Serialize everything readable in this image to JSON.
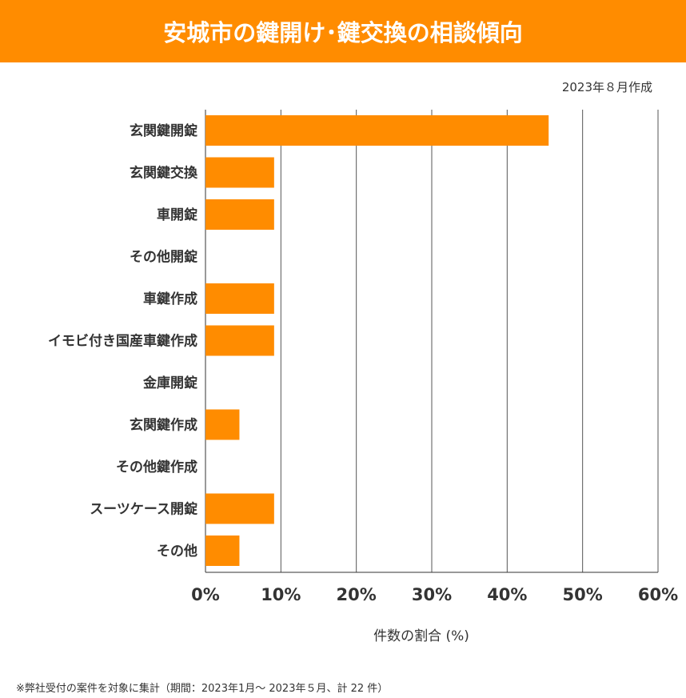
{
  "header": {
    "title": "安城市の鍵開け･鍵交換の相談傾向"
  },
  "created": "2023年８月作成",
  "footnote": "※弊社受付の案件を対象に集計（期間：2023年1月～ 2023年５月、計 22 件）",
  "colors": {
    "accent": "#FF8C00",
    "bar": "#FF8C00",
    "grid": "#555555"
  },
  "chart_data": {
    "type": "bar",
    "orientation": "horizontal",
    "categories": [
      "玄関鍵開錠",
      "玄関鍵交換",
      "車開錠",
      "その他開錠",
      "車鍵作成",
      "イモビ付き国産車鍵作成",
      "金庫開錠",
      "玄関鍵作成",
      "その他鍵作成",
      "スーツケース開錠",
      "その他"
    ],
    "values": [
      45.5,
      9.1,
      9.1,
      0,
      9.1,
      9.1,
      0,
      4.5,
      0,
      9.1,
      4.5
    ],
    "xlabel": "件数の割合 (%)",
    "xlim": [
      0,
      60
    ],
    "xticks": [
      "0%",
      "10%",
      "20%",
      "30%",
      "40%",
      "50%",
      "60%"
    ],
    "grid": true
  }
}
